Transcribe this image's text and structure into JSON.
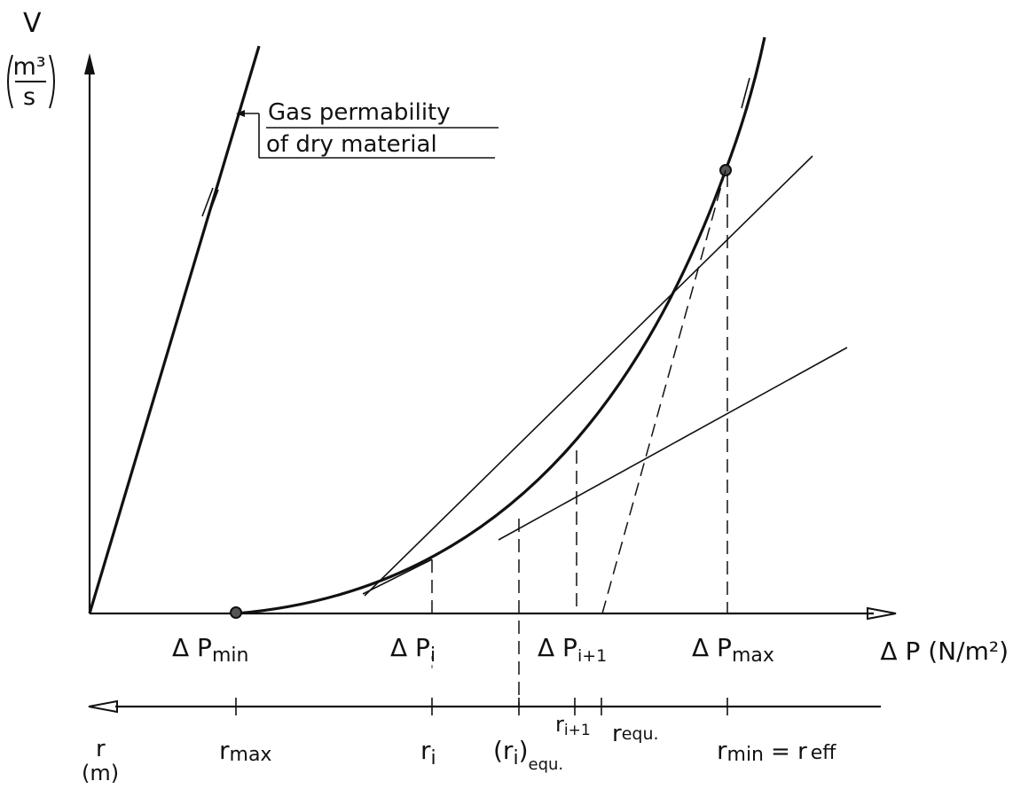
{
  "axes": {
    "y_label": "V",
    "y_unit_num": "m³",
    "y_unit_den": "s",
    "x_label": "Δ P (N/m²)",
    "r_label": "r",
    "r_unit": "(m)"
  },
  "annotation": {
    "line1": "Gas permability",
    "line2": "of dry material"
  },
  "pressure_labels": {
    "p_min": "Δ P",
    "p_min_sub": "min",
    "p_i": "Δ P",
    "p_i_sub": "i",
    "p_i1": "Δ P",
    "p_i1_sub": "i+1",
    "p_max": "Δ P",
    "p_max_sub": "max"
  },
  "radius_labels": {
    "r_max": "r",
    "r_max_sub": "max",
    "r_i": "r",
    "r_i_sub": "i",
    "r_i_equ_main": "(r",
    "r_i_equ_sub1": "i",
    "r_i_equ_close": ")",
    "r_i_equ_sub2": "equ.",
    "r_i1": "r",
    "r_i1_sub": "i+1",
    "r_equ": "r",
    "r_equ_sub": "equ.",
    "r_min": "r",
    "r_min_sub": "min",
    "r_min_eq": "= r",
    "r_eff_sub": "eff"
  }
}
